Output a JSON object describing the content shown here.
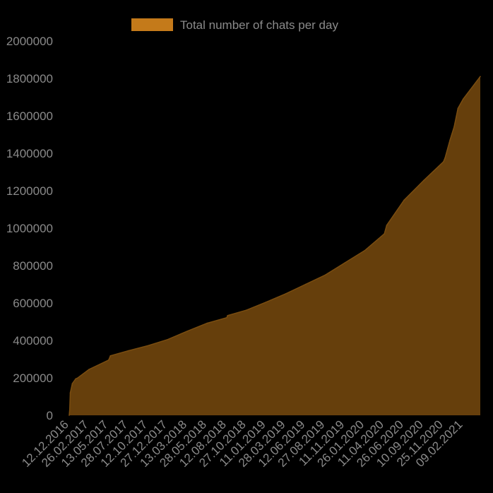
{
  "chart_data": {
    "type": "area",
    "title": "",
    "xlabel": "",
    "ylabel": "",
    "legend": {
      "position": "top-center",
      "label": "Total number of chats per day"
    },
    "series": [
      {
        "name": "Total number of chats per day",
        "color": "#c47a1a",
        "fill": "#6b430e",
        "x": [
          "12.12.2016",
          "14.12.2016",
          "16.12.2016",
          "24.12.2016",
          "06.01.2017",
          "14.01.2017",
          "26.02.2017",
          "13.05.2017",
          "20.05.2017",
          "28.07.2017",
          "12.10.2017",
          "27.12.2017",
          "13.03.2018",
          "28.05.2018",
          "12.08.2018",
          "15.08.2018",
          "27.10.2018",
          "11.01.2019",
          "28.03.2019",
          "12.06.2019",
          "27.08.2019",
          "11.11.2019",
          "26.01.2020",
          "11.04.2020",
          "20.04.2020",
          "26.06.2020",
          "10.09.2020",
          "25.11.2020",
          "01.12.2020",
          "20.12.2020",
          "05.01.2021",
          "20.01.2021",
          "09.02.2021",
          "16.04.2021"
        ],
        "values": [
          0,
          30000,
          120000,
          170000,
          195000,
          200000,
          245000,
          295000,
          318000,
          345000,
          372000,
          405000,
          450000,
          492000,
          522000,
          533000,
          562000,
          605000,
          650000,
          700000,
          750000,
          815000,
          880000,
          970000,
          1015000,
          1150000,
          1255000,
          1355000,
          1375000,
          1470000,
          1540000,
          1640000,
          1690000,
          1810000
        ]
      }
    ],
    "x_tick_labels": [
      "12.12.2016",
      "26.02.2017",
      "13.05.2017",
      "28.07.2017",
      "12.10.2017",
      "27.12.2017",
      "13.03.2018",
      "28.05.2018",
      "12.08.2018",
      "27.10.2018",
      "11.01.2019",
      "28.03.2019",
      "12.06.2019",
      "27.08.2019",
      "11.11.2019",
      "26.01.2020",
      "11.04.2020",
      "26.06.2020",
      "10.09.2020",
      "25.11.2020",
      "09.02.2021"
    ],
    "y_tick_labels": [
      "0",
      "200000",
      "400000",
      "600000",
      "800000",
      "1000000",
      "1200000",
      "1400000",
      "1600000",
      "1800000",
      "2000000"
    ],
    "ylim": [
      0,
      2000000
    ],
    "xlim": [
      "12.12.2016",
      "16.04.2021"
    ],
    "grid": false,
    "background": "#000000",
    "text_color": "#8a8a8a"
  }
}
